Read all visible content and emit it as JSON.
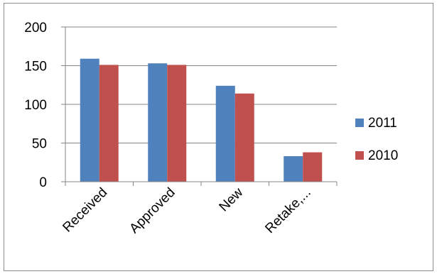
{
  "chart_data": {
    "type": "bar",
    "categories": [
      "Received",
      "Approved",
      "New",
      "Retake,..."
    ],
    "series": [
      {
        "name": "2011",
        "values": [
          159,
          153,
          124,
          33
        ],
        "color": "#4f81bd"
      },
      {
        "name": "2010",
        "values": [
          151,
          151,
          114,
          38
        ],
        "color": "#c0504d"
      }
    ],
    "ylim": [
      0,
      200
    ],
    "yticks": [
      0,
      50,
      100,
      150,
      200
    ],
    "title": "",
    "xlabel": "",
    "ylabel": "",
    "grid": true,
    "legend": "right"
  }
}
